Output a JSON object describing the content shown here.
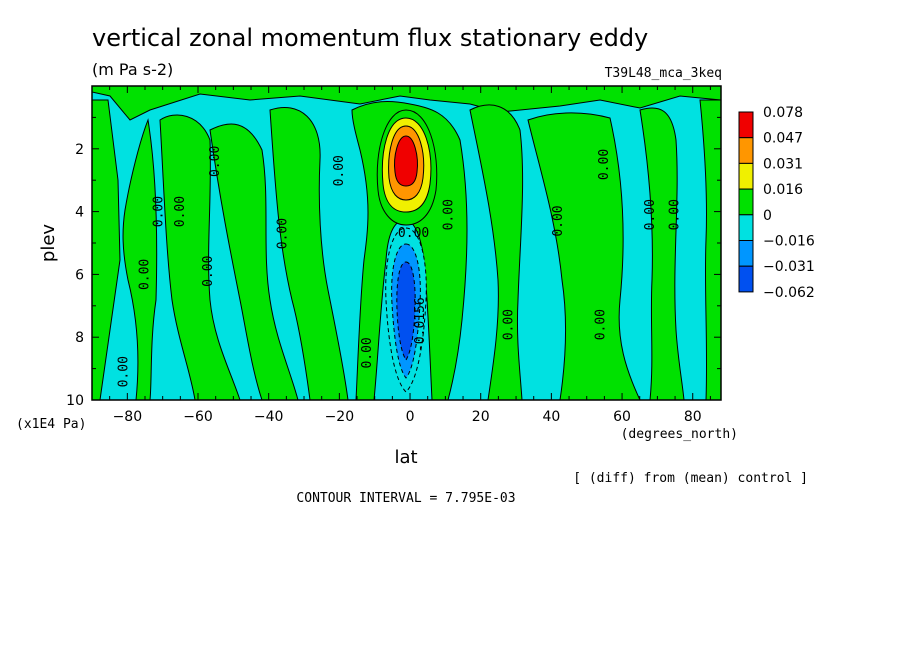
{
  "chart_data": {
    "type": "heatmap",
    "title": "vertical zonal momentum flux stationary eddy",
    "units": "(m Pa s-2)",
    "run_label": "T39L48_mca_3keq",
    "xlabel": "lat",
    "x_units": "(degrees_north)",
    "ylabel": "plev",
    "y_units": "(x1E4 Pa)",
    "x_ticks": [
      -80,
      -60,
      -40,
      -20,
      0,
      20,
      40,
      60,
      80
    ],
    "y_ticks": [
      2,
      4,
      6,
      8,
      10
    ],
    "xlim": [
      -90,
      88
    ],
    "ylim": [
      10,
      0
    ],
    "footer_note": "[ (diff) from (mean) control ]",
    "contour_interval": "CONTOUR INTERVAL = 7.795E-03",
    "colorbar": {
      "levels": [
        "0.078",
        "0.047",
        "0.031",
        "0.016",
        "0",
        "-0.016",
        "-0.031",
        "-0.062"
      ],
      "colors": [
        "#f00000",
        "#ff9600",
        "#f0f000",
        "#00e100",
        "#00e1e1",
        "#0096ff",
        "#0050f0"
      ]
    },
    "contour_labels": [
      {
        "text": "0.00",
        "lat": -81,
        "plev": 9.1,
        "rot": -90
      },
      {
        "text": "0.00",
        "lat": -75,
        "plev": 6.0,
        "rot": -90
      },
      {
        "text": "0.00",
        "lat": -71,
        "plev": 4.0,
        "rot": -90
      },
      {
        "text": "0.00",
        "lat": -65,
        "plev": 4.0,
        "rot": -90
      },
      {
        "text": "0.00",
        "lat": -55,
        "plev": 2.4,
        "rot": -90
      },
      {
        "text": "0.00",
        "lat": -57,
        "plev": 5.9,
        "rot": -90
      },
      {
        "text": "0.00",
        "lat": -36,
        "plev": 4.7,
        "rot": -90
      },
      {
        "text": "0.00",
        "lat": -20,
        "plev": 2.7,
        "rot": -90
      },
      {
        "text": "0.00",
        "lat": -12,
        "plev": 8.5,
        "rot": -90
      },
      {
        "text": "0.00",
        "lat": 1,
        "plev": 4.7,
        "rot": 0
      },
      {
        "text": "0.00",
        "lat": 11,
        "plev": 4.1,
        "rot": -90
      },
      {
        "text": "-0.0156",
        "lat": 3,
        "plev": 7.6,
        "rot": -90
      },
      {
        "text": "0.00",
        "lat": 28,
        "plev": 7.6,
        "rot": -90
      },
      {
        "text": "0.00",
        "lat": 42,
        "plev": 4.3,
        "rot": -90
      },
      {
        "text": "0.00",
        "lat": 54,
        "plev": 7.6,
        "rot": -90
      },
      {
        "text": "0.00",
        "lat": 55,
        "plev": 2.5,
        "rot": -90
      },
      {
        "text": "0.00",
        "lat": 68,
        "plev": 4.1,
        "rot": -90
      },
      {
        "text": "0.00",
        "lat": 75,
        "plev": 4.1,
        "rot": -90
      }
    ]
  }
}
